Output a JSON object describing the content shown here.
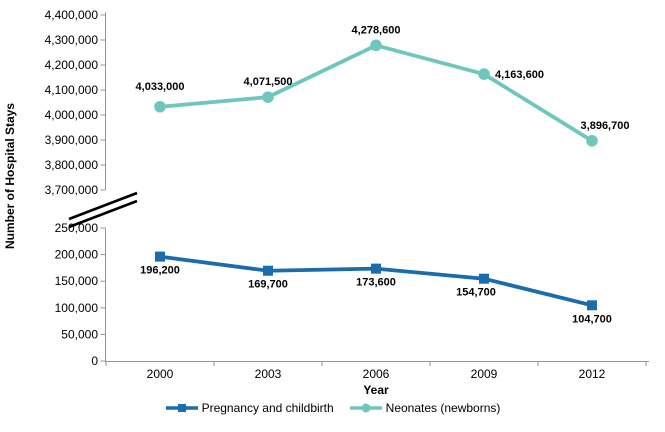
{
  "chart_data": {
    "type": "line",
    "title": "",
    "xlabel": "Year",
    "ylabel": "Number of Hospital Stays",
    "categories": [
      "2000",
      "2003",
      "2006",
      "2009",
      "2012"
    ],
    "grid": false,
    "legend_position": "bottom",
    "axis_break": true,
    "axis_color": "#969696",
    "break_mark_color": "#000000",
    "text_color": "#000000",
    "y_axis_upper": {
      "min": 3700000,
      "max": 4400000,
      "step": 100000,
      "tick_labels": [
        "4,400,000",
        "4,300,000",
        "4,200,000",
        "4,100,000",
        "4,000,000",
        "3,900,000",
        "3,800,000",
        "3,700,000"
      ]
    },
    "y_axis_lower": {
      "min": 0,
      "max": 250000,
      "step": 50000,
      "tick_labels": [
        "250,000",
        "200,000",
        "150,000",
        "100,000",
        "50,000",
        "0"
      ]
    },
    "series": [
      {
        "name": "Pregnancy and childbirth",
        "color": "#1B6CAD",
        "marker": "square",
        "axis": "lower",
        "values": [
          196200,
          169700,
          173600,
          154700,
          104700
        ],
        "data_labels": [
          "196,200",
          "169,700",
          "173,600",
          "154,700",
          "104,700"
        ],
        "label_placements": [
          {
            "pos": "below"
          },
          {
            "pos": "below"
          },
          {
            "pos": "below"
          },
          {
            "pos": "below",
            "dx": -8
          },
          {
            "pos": "below"
          }
        ]
      },
      {
        "name": "Neonates (newborns)",
        "color": "#6EC6BD",
        "marker": "circle",
        "axis": "upper",
        "values": [
          4033000,
          4071500,
          4278600,
          4163600,
          3896700
        ],
        "data_labels": [
          "4,033,000",
          "4,071,500",
          "4,278,600",
          "4,163,600",
          "3,896,700"
        ],
        "label_placements": [
          {
            "pos": "above",
            "dy": -5
          },
          {
            "pos": "above"
          },
          {
            "pos": "above"
          },
          {
            "pos": "right"
          },
          {
            "pos": "above",
            "dx": 13
          }
        ]
      }
    ]
  }
}
